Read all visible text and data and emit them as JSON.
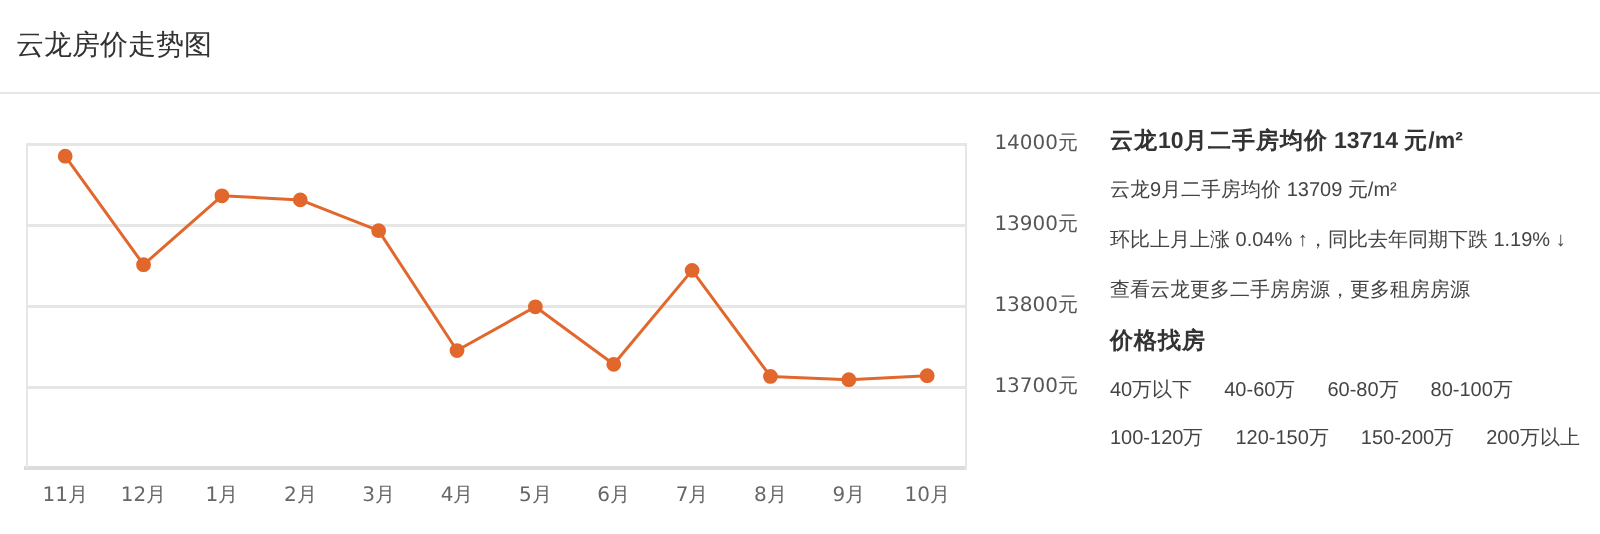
{
  "chart_data": {
    "type": "line",
    "title": "云龙房价走势图",
    "categories": [
      "11月",
      "12月",
      "1月",
      "2月",
      "3月",
      "4月",
      "5月",
      "6月",
      "7月",
      "8月",
      "9月",
      "10月"
    ],
    "series": [
      {
        "color": "#e2672c",
        "values": [
          13985,
          13851,
          13936,
          13931,
          13893,
          13745,
          13799,
          13728,
          13844,
          13713,
          13709,
          13714
        ]
      }
    ],
    "ylim": [
      13600,
      14000
    ],
    "yticks": [
      {
        "value": 13600,
        "label": null
      },
      {
        "value": 13700,
        "label": "13700元"
      },
      {
        "value": 13800,
        "label": "13800元"
      },
      {
        "value": 13900,
        "label": "13900元"
      },
      {
        "value": 14000,
        "label": "14000元"
      }
    ],
    "grid": "y",
    "marker": "circle",
    "line_style": "solid",
    "legend": false,
    "annotations": [
      "云龙10月二手房均价 13714 元/m²",
      "云龙9月二手房均价 13709 元/m²",
      "环比上月上涨 0.04% ↑，同比去年同期下跌 1.19% ↓",
      "查看云龙更多二手房房源，更多租房房源",
      "价格找房",
      "40万以下",
      "40-60万",
      "60-80万",
      "80-100万",
      "100-120万",
      "120-150万",
      "150-200万",
      "200万以上"
    ]
  }
}
